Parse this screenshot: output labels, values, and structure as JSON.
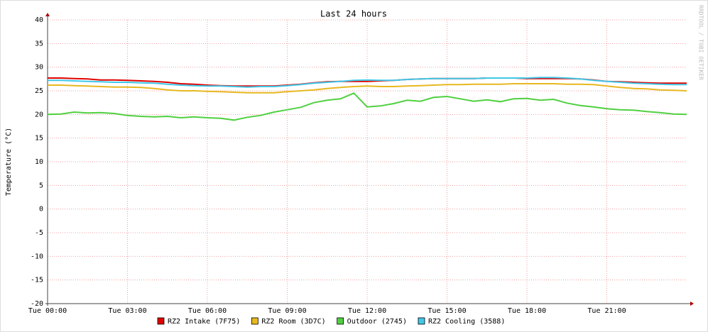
{
  "chart_data": {
    "type": "line",
    "title": "Last 24 hours",
    "y_label": "Temperature (°C)",
    "watermark": "RRDTOOL / TOBI OETIKER",
    "x": [
      0,
      0.5,
      1,
      1.5,
      2,
      2.5,
      3,
      3.5,
      4,
      4.5,
      5,
      5.5,
      6,
      6.5,
      7,
      7.5,
      8,
      8.5,
      9,
      9.5,
      10,
      10.5,
      11,
      11.5,
      12,
      12.5,
      13,
      13.5,
      14,
      14.5,
      15,
      15.5,
      16,
      16.5,
      17,
      17.5,
      18,
      18.5,
      19,
      19.5,
      20,
      20.5,
      21,
      21.5,
      22,
      22.5,
      23,
      23.5,
      24
    ],
    "series": [
      {
        "name": "RZ2 Intake (7F75)",
        "color": "#e00000",
        "values": [
          27.7,
          27.7,
          27.6,
          27.5,
          27.3,
          27.3,
          27.2,
          27.1,
          27.0,
          26.8,
          26.5,
          26.4,
          26.2,
          26.1,
          26.0,
          26.0,
          26.0,
          26.0,
          26.2,
          26.4,
          26.7,
          26.9,
          27.0,
          27.0,
          27.0,
          27.1,
          27.2,
          27.4,
          27.5,
          27.6,
          27.6,
          27.6,
          27.6,
          27.7,
          27.7,
          27.7,
          27.6,
          27.6,
          27.6,
          27.6,
          27.5,
          27.3,
          27.0,
          26.9,
          26.8,
          26.7,
          26.6,
          26.6,
          26.6
        ]
      },
      {
        "name": "RZ2 Room (3D7C)",
        "color": "#e8b820",
        "values": [
          26.2,
          26.2,
          26.1,
          26.0,
          25.9,
          25.8,
          25.8,
          25.7,
          25.5,
          25.2,
          25.0,
          25.0,
          24.9,
          24.8,
          24.7,
          24.6,
          24.6,
          24.6,
          24.8,
          25.0,
          25.2,
          25.5,
          25.7,
          25.9,
          26.0,
          25.9,
          25.9,
          26.0,
          26.1,
          26.2,
          26.3,
          26.3,
          26.4,
          26.4,
          26.4,
          26.5,
          26.5,
          26.5,
          26.5,
          26.4,
          26.4,
          26.3,
          26.0,
          25.7,
          25.5,
          25.4,
          25.2,
          25.1,
          25.0
        ]
      },
      {
        "name": "Outdoor (2745)",
        "color": "#50d040",
        "values": [
          20.0,
          20.1,
          20.5,
          20.3,
          20.4,
          20.2,
          19.8,
          19.6,
          19.5,
          19.6,
          19.3,
          19.5,
          19.3,
          19.2,
          18.8,
          19.4,
          19.8,
          20.5,
          21.0,
          21.5,
          22.5,
          23.0,
          23.3,
          24.5,
          21.6,
          21.8,
          22.3,
          23.0,
          22.8,
          23.6,
          23.8,
          23.3,
          22.8,
          23.1,
          22.7,
          23.3,
          23.4,
          23.0,
          23.2,
          22.4,
          21.9,
          21.6,
          21.2,
          21.0,
          20.9,
          20.6,
          20.4,
          20.1,
          20.0
        ]
      },
      {
        "name": "RZ2 Cooling (3588)",
        "color": "#40c8e8",
        "values": [
          27.2,
          27.2,
          27.1,
          27.0,
          26.9,
          26.8,
          26.8,
          26.7,
          26.6,
          26.4,
          26.2,
          26.1,
          26.0,
          26.0,
          25.9,
          25.8,
          25.9,
          25.9,
          26.1,
          26.3,
          26.6,
          26.8,
          27.0,
          27.2,
          27.3,
          27.2,
          27.2,
          27.4,
          27.5,
          27.6,
          27.6,
          27.6,
          27.6,
          27.7,
          27.7,
          27.7,
          27.7,
          27.8,
          27.8,
          27.7,
          27.5,
          27.2,
          27.0,
          26.8,
          26.6,
          26.5,
          26.4,
          26.3,
          26.3
        ]
      }
    ],
    "xlim": [
      0,
      24
    ],
    "xticks": [
      {
        "value": 0,
        "label": "Tue 00:00"
      },
      {
        "value": 3,
        "label": "Tue 03:00"
      },
      {
        "value": 6,
        "label": "Tue 06:00"
      },
      {
        "value": 9,
        "label": "Tue 09:00"
      },
      {
        "value": 12,
        "label": "Tue 12:00"
      },
      {
        "value": 15,
        "label": "Tue 15:00"
      },
      {
        "value": 18,
        "label": "Tue 18:00"
      },
      {
        "value": 21,
        "label": "Tue 21:00"
      }
    ],
    "ylim": [
      -20,
      40
    ],
    "yticks": [
      -20,
      -15,
      -10,
      -5,
      0,
      5,
      10,
      15,
      20,
      25,
      30,
      35,
      40
    ],
    "grid": true,
    "legend": "bottom"
  }
}
